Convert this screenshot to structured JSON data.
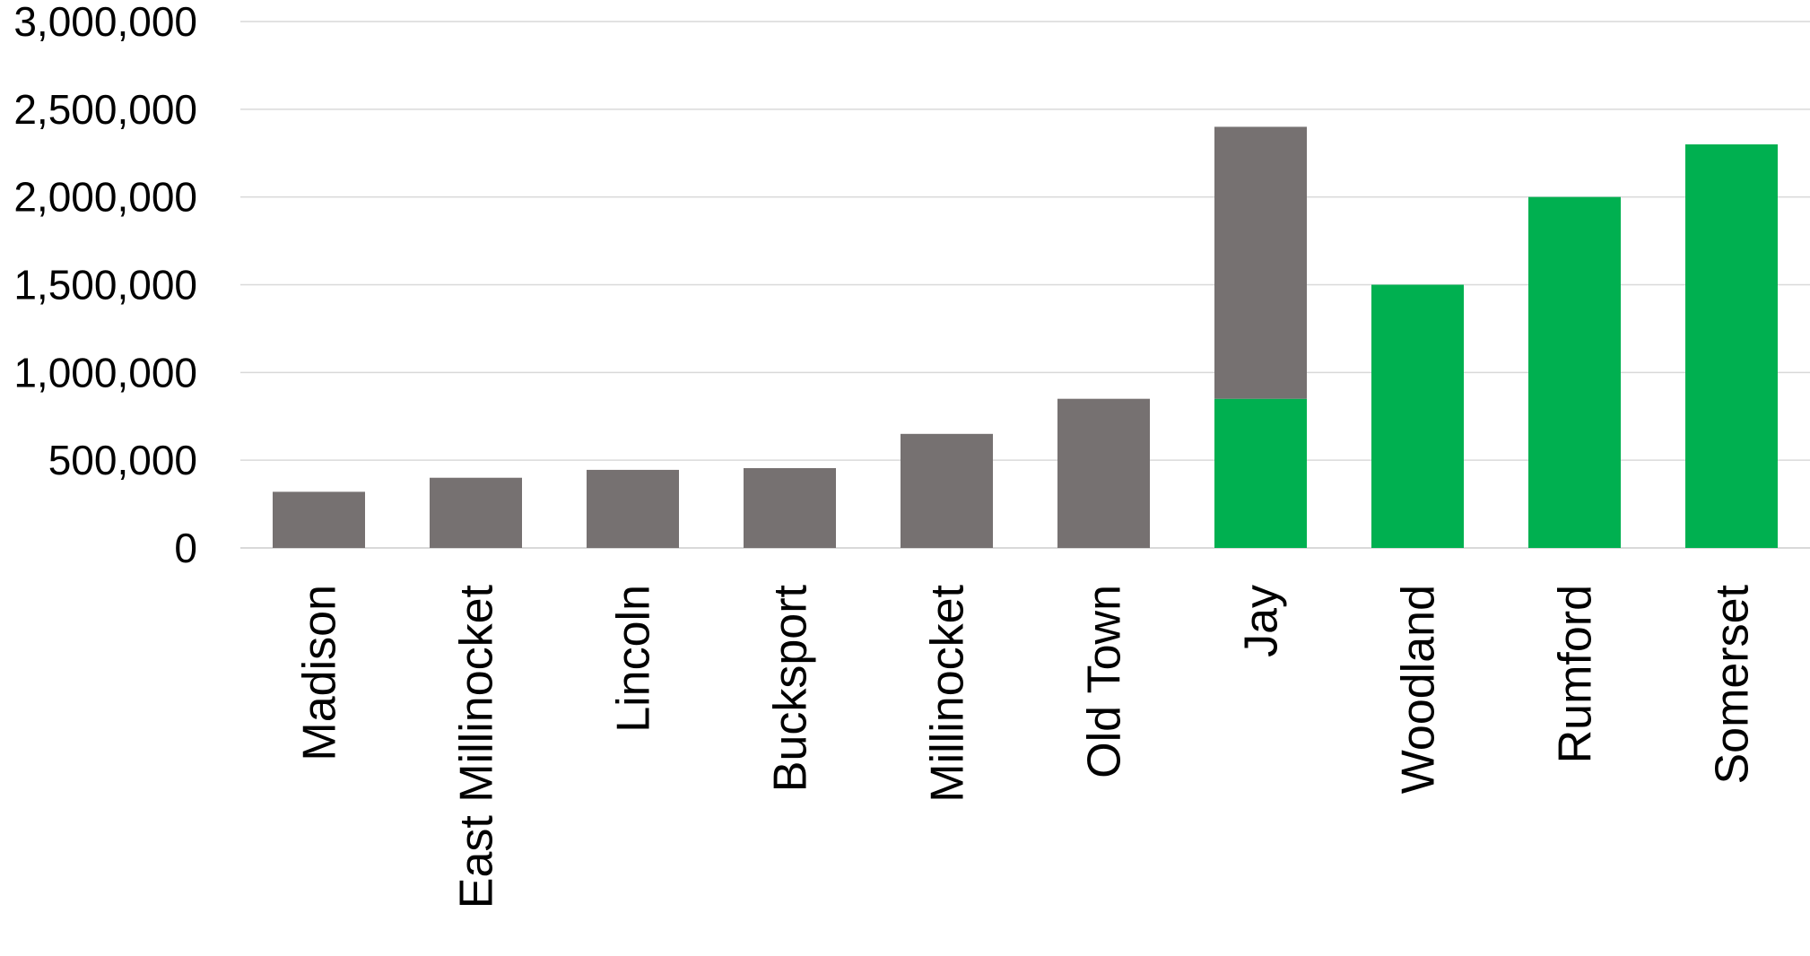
{
  "chart_data": {
    "type": "bar",
    "stacked": true,
    "title": "",
    "xlabel": "",
    "ylabel": "",
    "ylim": [
      0,
      3000000
    ],
    "yticks": [
      0,
      500000,
      1000000,
      1500000,
      2000000,
      2500000,
      3000000
    ],
    "ytick_labels": [
      "0",
      "500,000",
      "1,000,000",
      "1,500,000",
      "2,000,000",
      "2,500,000",
      "3,000,000"
    ],
    "grid": true,
    "legend": "none",
    "category_label_orientation": "vertical",
    "categories": [
      "Madison",
      "East Millinocket",
      "Lincoln",
      "Bucksport",
      "Millinocket",
      "Old Town",
      "Jay",
      "Woodland",
      "Rumford",
      "Somerset"
    ],
    "series": [
      {
        "color": "#00b050",
        "values": [
          0,
          0,
          0,
          0,
          0,
          0,
          850000,
          1500000,
          2000000,
          2300000
        ]
      },
      {
        "color": "#767171",
        "values": [
          320000,
          400000,
          445000,
          455000,
          650000,
          850000,
          1550000,
          0,
          0,
          0
        ]
      }
    ]
  }
}
